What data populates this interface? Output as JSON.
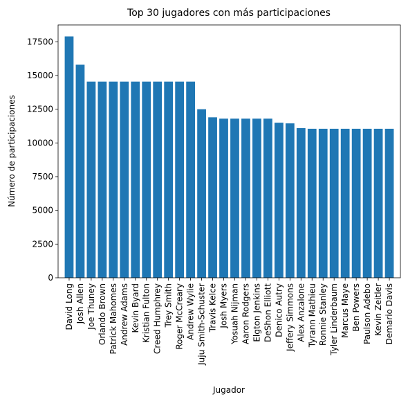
{
  "chart_data": {
    "type": "bar",
    "title": "Top 30 jugadores con más participaciones",
    "xlabel": "Jugador",
    "ylabel": "Número de participaciones",
    "ylim": [
      0,
      18750
    ],
    "yticks": [
      0,
      2500,
      5000,
      7500,
      10000,
      12500,
      15000,
      17500
    ],
    "grid": false,
    "bar_color": "#1f77b4",
    "categories": [
      "David Long",
      "Josh Allen",
      "Joe Thuney",
      "Orlando Brown",
      "Patrick Mahomes",
      "Andrew Adams",
      "Kevin Byard",
      "Kristian Fulton",
      "Creed Humphrey",
      "Trey Smith",
      "Roger McCreary",
      "Andrew Wylie",
      "Juju Smith-Schuster",
      "Travis Kelce",
      "Josh Myers",
      "Yosuah Nijman",
      "Aaron Rodgers",
      "Elgton Jenkins",
      "DeShon Elliott",
      "Denico Autry",
      "Jeffery Simmons",
      "Alex Anzalone",
      "Tyrann Mathieu",
      "Ronnie Stanley",
      "Tyler Linderbaum",
      "Marcus Maye",
      "Ben Powers",
      "Paulson Adebo",
      "Kevin Zeitler",
      "Demario Davis"
    ],
    "values": [
      17900,
      15800,
      14550,
      14550,
      14550,
      14550,
      14550,
      14550,
      14550,
      14550,
      14550,
      14550,
      12500,
      11900,
      11800,
      11800,
      11800,
      11800,
      11800,
      11500,
      11450,
      11100,
      11050,
      11050,
      11050,
      11050,
      11050,
      11050,
      11050,
      11050
    ]
  }
}
